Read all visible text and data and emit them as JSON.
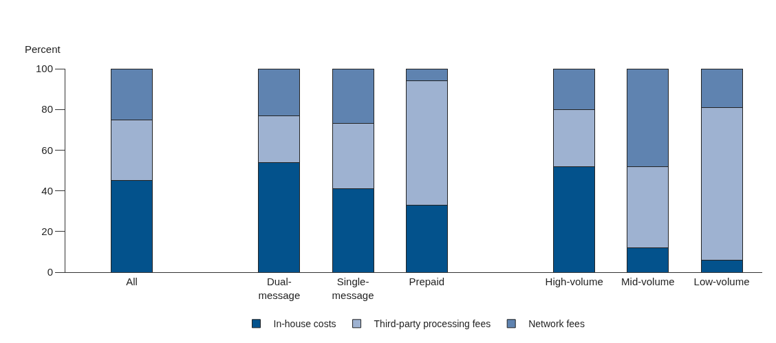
{
  "chart_data": {
    "type": "bar",
    "stacked": true,
    "ylabel": "Percent",
    "categories": [
      "All",
      null,
      "Dual-\nmessage",
      "Single-\nmessage",
      "Prepaid",
      null,
      "High-volume",
      "Mid-volume",
      "Low-volume"
    ],
    "series": [
      {
        "name": "In-house costs",
        "color": "#03528c",
        "values": [
          45,
          null,
          54,
          41,
          33,
          null,
          52,
          12,
          6
        ]
      },
      {
        "name": "Third-party processing fees",
        "color": "#9eb2d1",
        "values": [
          30,
          null,
          23,
          32,
          61,
          null,
          28,
          40,
          75
        ]
      },
      {
        "name": "Network fees",
        "color": "#5f83b0",
        "values": [
          25,
          null,
          23,
          27,
          6,
          null,
          20,
          48,
          19
        ]
      }
    ],
    "ylim": [
      0,
      100
    ],
    "yticks": [
      0,
      20,
      40,
      60,
      80,
      100
    ],
    "legend": "bottom"
  }
}
